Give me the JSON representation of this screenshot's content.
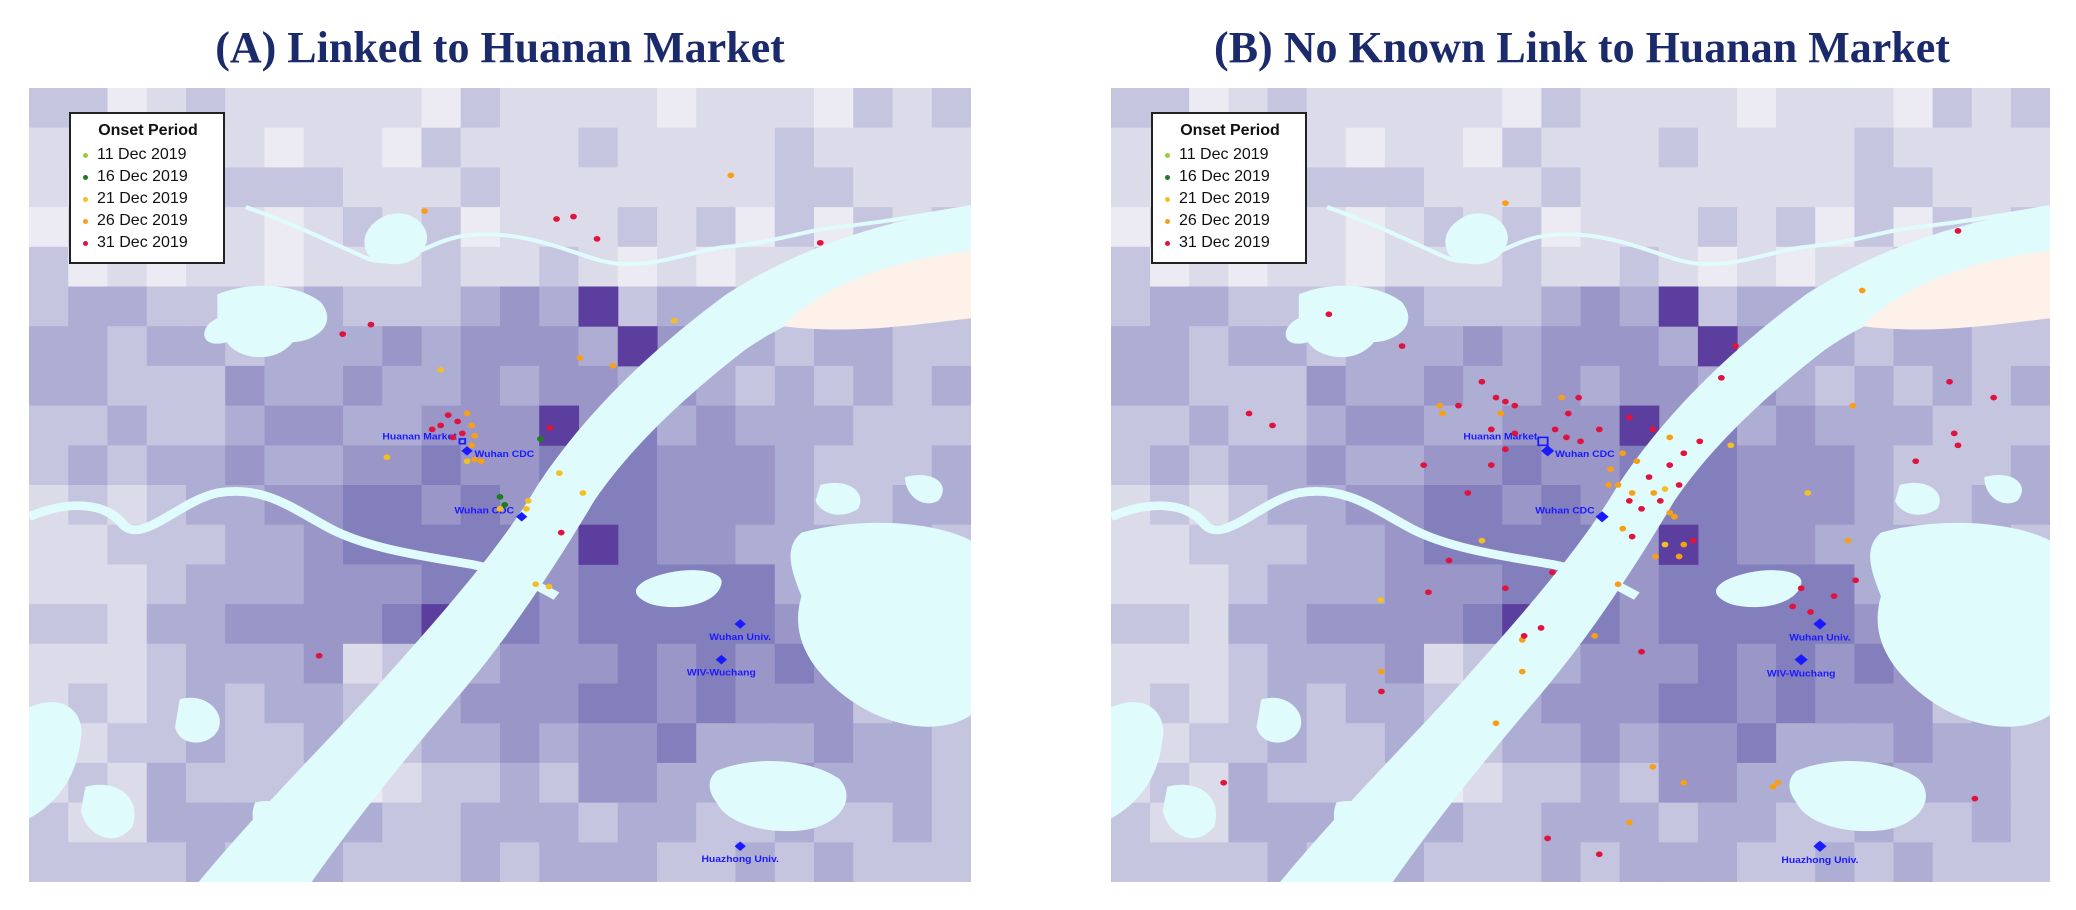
{
  "colors": {
    "title": "#1b2a6b",
    "landmark": "#1a1aff",
    "water": "#e0fbfc",
    "sandbar": "#fdf1ea",
    "density_levels": [
      "#ecebf3",
      "#dcdbea",
      "#c6c5e0",
      "#aeadd4",
      "#9a96c8",
      "#837ebc",
      "#5c3e9e"
    ]
  },
  "period_colors": [
    "#9acd32",
    "#1e7d1e",
    "#f2c025",
    "#f7a017",
    "#e0123e"
  ],
  "legend": {
    "title": "Onset Period",
    "items": [
      "11 Dec 2019",
      "16 Dec 2019",
      "21 Dec 2019",
      "26 Dec 2019",
      "31 Dec 2019"
    ]
  },
  "panels": [
    {
      "id": "A",
      "title": "(A) Linked to Huanan Market",
      "landmarks": [
        {
          "name": "Huanan Market",
          "map_x": 0.46,
          "map_y": 0.445,
          "shape": "square",
          "size": 6
        },
        {
          "name": "Wuhan CDC",
          "map_x": 0.465,
          "map_y": 0.457,
          "shape": "diamond",
          "size": 6
        },
        {
          "name": "Wuhan CDC",
          "map_x": 0.523,
          "map_y": 0.54,
          "shape": "diamond",
          "size": 6
        },
        {
          "name": "Wuhan Univ.",
          "map_x": 0.755,
          "map_y": 0.675,
          "shape": "diamond",
          "size": 6
        },
        {
          "name": "WIV-Wuchang",
          "map_x": 0.735,
          "map_y": 0.72,
          "shape": "diamond",
          "size": 6
        },
        {
          "name": "Huazhong Univ.",
          "map_x": 0.755,
          "map_y": 0.955,
          "shape": "diamond",
          "size": 6
        }
      ],
      "cases": [
        {
          "map_x": 0.745,
          "map_y": 0.11,
          "period": 3
        },
        {
          "map_x": 0.42,
          "map_y": 0.155,
          "period": 3
        },
        {
          "map_x": 0.56,
          "map_y": 0.165,
          "period": 4
        },
        {
          "map_x": 0.578,
          "map_y": 0.162,
          "period": 4
        },
        {
          "map_x": 0.603,
          "map_y": 0.19,
          "period": 4
        },
        {
          "map_x": 0.84,
          "map_y": 0.195,
          "period": 4
        },
        {
          "map_x": 0.685,
          "map_y": 0.293,
          "period": 2
        },
        {
          "map_x": 0.333,
          "map_y": 0.31,
          "period": 4
        },
        {
          "map_x": 0.363,
          "map_y": 0.298,
          "period": 4
        },
        {
          "map_x": 0.585,
          "map_y": 0.34,
          "period": 3
        },
        {
          "map_x": 0.62,
          "map_y": 0.35,
          "period": 3
        },
        {
          "map_x": 0.437,
          "map_y": 0.355,
          "period": 2
        },
        {
          "map_x": 0.445,
          "map_y": 0.412,
          "period": 4
        },
        {
          "map_x": 0.455,
          "map_y": 0.42,
          "period": 4
        },
        {
          "map_x": 0.437,
          "map_y": 0.425,
          "period": 4
        },
        {
          "map_x": 0.465,
          "map_y": 0.41,
          "period": 3
        },
        {
          "map_x": 0.47,
          "map_y": 0.425,
          "period": 3
        },
        {
          "map_x": 0.46,
          "map_y": 0.435,
          "period": 4
        },
        {
          "map_x": 0.428,
          "map_y": 0.43,
          "period": 4
        },
        {
          "map_x": 0.473,
          "map_y": 0.438,
          "period": 3
        },
        {
          "map_x": 0.45,
          "map_y": 0.44,
          "period": 4
        },
        {
          "map_x": 0.47,
          "map_y": 0.45,
          "period": 3
        },
        {
          "map_x": 0.473,
          "map_y": 0.468,
          "period": 3
        },
        {
          "map_x": 0.48,
          "map_y": 0.47,
          "period": 3
        },
        {
          "map_x": 0.465,
          "map_y": 0.47,
          "period": 2
        },
        {
          "map_x": 0.38,
          "map_y": 0.465,
          "period": 2
        },
        {
          "map_x": 0.543,
          "map_y": 0.442,
          "period": 1
        },
        {
          "map_x": 0.553,
          "map_y": 0.428,
          "period": 4
        },
        {
          "map_x": 0.563,
          "map_y": 0.485,
          "period": 2
        },
        {
          "map_x": 0.5,
          "map_y": 0.515,
          "period": 1
        },
        {
          "map_x": 0.505,
          "map_y": 0.525,
          "period": 1
        },
        {
          "map_x": 0.5,
          "map_y": 0.53,
          "period": 2
        },
        {
          "map_x": 0.528,
          "map_y": 0.53,
          "period": 2
        },
        {
          "map_x": 0.53,
          "map_y": 0.52,
          "period": 2
        },
        {
          "map_x": 0.588,
          "map_y": 0.51,
          "period": 2
        },
        {
          "map_x": 0.565,
          "map_y": 0.56,
          "period": 4
        },
        {
          "map_x": 0.538,
          "map_y": 0.625,
          "period": 2
        },
        {
          "map_x": 0.552,
          "map_y": 0.628,
          "period": 2
        },
        {
          "map_x": 0.308,
          "map_y": 0.715,
          "period": 4
        }
      ]
    },
    {
      "id": "B",
      "title": "(B) No Known Link to Huanan Market",
      "landmarks": [
        {
          "name": "Huanan Market",
          "map_x": 0.46,
          "map_y": 0.445,
          "shape": "square",
          "size": 10
        },
        {
          "name": "Wuhan CDC",
          "map_x": 0.465,
          "map_y": 0.457,
          "shape": "diamond",
          "size": 7
        },
        {
          "name": "Wuhan CDC",
          "map_x": 0.523,
          "map_y": 0.54,
          "shape": "diamond",
          "size": 7
        },
        {
          "name": "Wuhan Univ.",
          "map_x": 0.755,
          "map_y": 0.675,
          "shape": "diamond",
          "size": 7
        },
        {
          "name": "WIV-Wuchang",
          "map_x": 0.735,
          "map_y": 0.72,
          "shape": "diamond",
          "size": 7
        },
        {
          "name": "Huazhong Univ.",
          "map_x": 0.755,
          "map_y": 0.955,
          "shape": "diamond",
          "size": 7
        }
      ],
      "cases": [
        {
          "map_x": 0.42,
          "map_y": 0.145,
          "period": 3
        },
        {
          "map_x": 0.8,
          "map_y": 0.255,
          "period": 3
        },
        {
          "map_x": 0.902,
          "map_y": 0.18,
          "period": 4
        },
        {
          "map_x": 0.232,
          "map_y": 0.285,
          "period": 4
        },
        {
          "map_x": 0.31,
          "map_y": 0.325,
          "period": 4
        },
        {
          "map_x": 0.665,
          "map_y": 0.325,
          "period": 4
        },
        {
          "map_x": 0.65,
          "map_y": 0.365,
          "period": 4
        },
        {
          "map_x": 0.147,
          "map_y": 0.41,
          "period": 4
        },
        {
          "map_x": 0.172,
          "map_y": 0.425,
          "period": 4
        },
        {
          "map_x": 0.35,
          "map_y": 0.4,
          "period": 3
        },
        {
          "map_x": 0.353,
          "map_y": 0.41,
          "period": 3
        },
        {
          "map_x": 0.37,
          "map_y": 0.4,
          "period": 4
        },
        {
          "map_x": 0.395,
          "map_y": 0.37,
          "period": 4
        },
        {
          "map_x": 0.41,
          "map_y": 0.39,
          "period": 4
        },
        {
          "map_x": 0.42,
          "map_y": 0.395,
          "period": 4
        },
        {
          "map_x": 0.43,
          "map_y": 0.4,
          "period": 4
        },
        {
          "map_x": 0.415,
          "map_y": 0.41,
          "period": 3
        },
        {
          "map_x": 0.405,
          "map_y": 0.43,
          "period": 4
        },
        {
          "map_x": 0.43,
          "map_y": 0.435,
          "period": 4
        },
        {
          "map_x": 0.48,
          "map_y": 0.39,
          "period": 3
        },
        {
          "map_x": 0.498,
          "map_y": 0.39,
          "period": 4
        },
        {
          "map_x": 0.487,
          "map_y": 0.41,
          "period": 4
        },
        {
          "map_x": 0.473,
          "map_y": 0.43,
          "period": 4
        },
        {
          "map_x": 0.485,
          "map_y": 0.44,
          "period": 4
        },
        {
          "map_x": 0.5,
          "map_y": 0.445,
          "period": 4
        },
        {
          "map_x": 0.52,
          "map_y": 0.43,
          "period": 4
        },
        {
          "map_x": 0.552,
          "map_y": 0.415,
          "period": 4
        },
        {
          "map_x": 0.577,
          "map_y": 0.43,
          "period": 4
        },
        {
          "map_x": 0.545,
          "map_y": 0.46,
          "period": 3
        },
        {
          "map_x": 0.56,
          "map_y": 0.47,
          "period": 3
        },
        {
          "map_x": 0.532,
          "map_y": 0.48,
          "period": 3
        },
        {
          "map_x": 0.53,
          "map_y": 0.5,
          "period": 3
        },
        {
          "map_x": 0.54,
          "map_y": 0.5,
          "period": 3
        },
        {
          "map_x": 0.555,
          "map_y": 0.51,
          "period": 3
        },
        {
          "map_x": 0.552,
          "map_y": 0.52,
          "period": 4
        },
        {
          "map_x": 0.573,
          "map_y": 0.49,
          "period": 4
        },
        {
          "map_x": 0.578,
          "map_y": 0.51,
          "period": 3
        },
        {
          "map_x": 0.585,
          "map_y": 0.52,
          "period": 4
        },
        {
          "map_x": 0.59,
          "map_y": 0.505,
          "period": 2
        },
        {
          "map_x": 0.595,
          "map_y": 0.535,
          "period": 3
        },
        {
          "map_x": 0.565,
          "map_y": 0.53,
          "period": 4
        },
        {
          "map_x": 0.545,
          "map_y": 0.555,
          "period": 3
        },
        {
          "map_x": 0.555,
          "map_y": 0.565,
          "period": 4
        },
        {
          "map_x": 0.58,
          "map_y": 0.59,
          "period": 3
        },
        {
          "map_x": 0.59,
          "map_y": 0.575,
          "period": 2
        },
        {
          "map_x": 0.605,
          "map_y": 0.59,
          "period": 3
        },
        {
          "map_x": 0.61,
          "map_y": 0.575,
          "period": 3
        },
        {
          "map_x": 0.62,
          "map_y": 0.57,
          "period": 4
        },
        {
          "map_x": 0.605,
          "map_y": 0.5,
          "period": 4
        },
        {
          "map_x": 0.595,
          "map_y": 0.475,
          "period": 4
        },
        {
          "map_x": 0.627,
          "map_y": 0.445,
          "period": 4
        },
        {
          "map_x": 0.595,
          "map_y": 0.44,
          "period": 3
        },
        {
          "map_x": 0.61,
          "map_y": 0.46,
          "period": 4
        },
        {
          "map_x": 0.42,
          "map_y": 0.455,
          "period": 4
        },
        {
          "map_x": 0.405,
          "map_y": 0.475,
          "period": 4
        },
        {
          "map_x": 0.54,
          "map_y": 0.625,
          "period": 3
        },
        {
          "map_x": 0.6,
          "map_y": 0.54,
          "period": 3
        },
        {
          "map_x": 0.47,
          "map_y": 0.61,
          "period": 4
        },
        {
          "map_x": 0.38,
          "map_y": 0.51,
          "period": 4
        },
        {
          "map_x": 0.333,
          "map_y": 0.475,
          "period": 4
        },
        {
          "map_x": 0.66,
          "map_y": 0.45,
          "period": 2
        },
        {
          "map_x": 0.742,
          "map_y": 0.51,
          "period": 2
        },
        {
          "map_x": 0.79,
          "map_y": 0.4,
          "period": 3
        },
        {
          "map_x": 0.893,
          "map_y": 0.37,
          "period": 4
        },
        {
          "map_x": 0.94,
          "map_y": 0.39,
          "period": 4
        },
        {
          "map_x": 0.898,
          "map_y": 0.435,
          "period": 4
        },
        {
          "map_x": 0.902,
          "map_y": 0.45,
          "period": 4
        },
        {
          "map_x": 0.857,
          "map_y": 0.47,
          "period": 4
        },
        {
          "map_x": 0.785,
          "map_y": 0.57,
          "period": 3
        },
        {
          "map_x": 0.793,
          "map_y": 0.62,
          "period": 4
        },
        {
          "map_x": 0.77,
          "map_y": 0.64,
          "period": 4
        },
        {
          "map_x": 0.735,
          "map_y": 0.63,
          "period": 4
        },
        {
          "map_x": 0.726,
          "map_y": 0.653,
          "period": 4
        },
        {
          "map_x": 0.745,
          "map_y": 0.66,
          "period": 4
        },
        {
          "map_x": 0.36,
          "map_y": 0.595,
          "period": 4
        },
        {
          "map_x": 0.395,
          "map_y": 0.57,
          "period": 2
        },
        {
          "map_x": 0.338,
          "map_y": 0.635,
          "period": 4
        },
        {
          "map_x": 0.458,
          "map_y": 0.68,
          "period": 4
        },
        {
          "map_x": 0.438,
          "map_y": 0.695,
          "period": 3
        },
        {
          "map_x": 0.44,
          "map_y": 0.69,
          "period": 4
        },
        {
          "map_x": 0.42,
          "map_y": 0.63,
          "period": 4
        },
        {
          "map_x": 0.515,
          "map_y": 0.69,
          "period": 3
        },
        {
          "map_x": 0.565,
          "map_y": 0.71,
          "period": 4
        },
        {
          "map_x": 0.438,
          "map_y": 0.735,
          "period": 3
        },
        {
          "map_x": 0.288,
          "map_y": 0.76,
          "period": 4
        },
        {
          "map_x": 0.288,
          "map_y": 0.735,
          "period": 3
        },
        {
          "map_x": 0.287,
          "map_y": 0.645,
          "period": 2
        },
        {
          "map_x": 0.41,
          "map_y": 0.8,
          "period": 3
        },
        {
          "map_x": 0.577,
          "map_y": 0.855,
          "period": 3
        },
        {
          "map_x": 0.61,
          "map_y": 0.875,
          "period": 3
        },
        {
          "map_x": 0.71,
          "map_y": 0.875,
          "period": 3
        },
        {
          "map_x": 0.705,
          "map_y": 0.88,
          "period": 3
        },
        {
          "map_x": 0.552,
          "map_y": 0.925,
          "period": 3
        },
        {
          "map_x": 0.12,
          "map_y": 0.875,
          "period": 4
        },
        {
          "map_x": 0.465,
          "map_y": 0.945,
          "period": 4
        },
        {
          "map_x": 0.52,
          "map_y": 0.965,
          "period": 4
        },
        {
          "map_x": 0.92,
          "map_y": 0.895,
          "period": 4
        }
      ]
    }
  ]
}
